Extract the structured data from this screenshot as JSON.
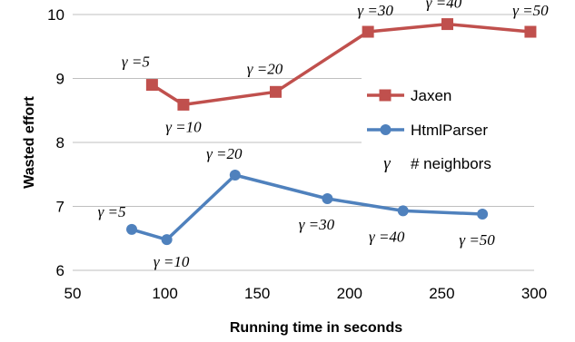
{
  "chart_data": {
    "type": "line",
    "title": "",
    "xlabel": "Running time in seconds",
    "ylabel": "Wasted effort",
    "xlim": [
      50,
      300
    ],
    "ylim": [
      6,
      10
    ],
    "xticks": [
      "50",
      "100",
      "150",
      "200",
      "250",
      "300"
    ],
    "yticks": [
      "6",
      "7",
      "8",
      "9",
      "10"
    ],
    "grid": "horizontal",
    "legend_position": "right",
    "series": [
      {
        "name": "Jaxen",
        "color": "#c0504d",
        "marker": "square",
        "x": [
          93,
          110,
          160,
          210,
          253,
          298
        ],
        "y": [
          8.9,
          8.59,
          8.79,
          9.73,
          9.85,
          9.73
        ],
        "labels": [
          "γ =5",
          "γ =10",
          "γ =20",
          "γ =30",
          "γ =40",
          "γ =50"
        ]
      },
      {
        "name": "HtmlParser",
        "color": "#4f81bd",
        "marker": "circle",
        "x": [
          82,
          101,
          138,
          188,
          229,
          272
        ],
        "y": [
          6.64,
          6.48,
          7.49,
          7.12,
          6.93,
          6.88
        ],
        "labels": [
          "γ =5",
          "γ =10",
          "γ =20",
          "γ =30",
          "γ =40",
          "γ =50"
        ]
      }
    ],
    "legend_extra": {
      "symbol": "γ",
      "text": "# neighbors"
    }
  }
}
